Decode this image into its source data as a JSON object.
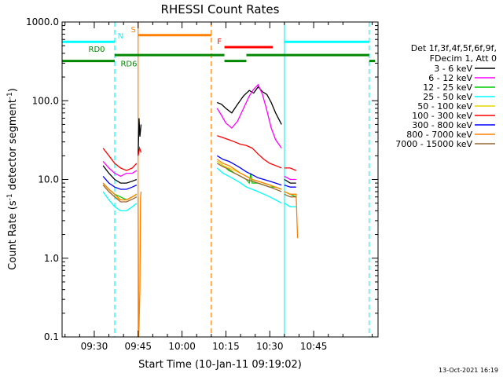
{
  "chart_data": {
    "type": "line",
    "title": "RHESSI Count Rates",
    "xlabel": "Start Time (10-Jan-11 09:19:02)",
    "ylabel_main": "Count Rate (s",
    "ylabel_sup1": "-1",
    "ylabel_mid": " detector segment",
    "ylabel_sup2": "-1",
    "ylabel_end": ")",
    "yscale": "log",
    "ylim": [
      0.1,
      1000
    ],
    "xlim_min": [
      19,
      127
    ],
    "yticks": [
      {
        "value": 1000,
        "label": "1000.0"
      },
      {
        "value": 100,
        "label": "100.0"
      },
      {
        "value": 10,
        "label": "10.0"
      },
      {
        "value": 1,
        "label": "1.0"
      },
      {
        "value": 0.1,
        "label": "0.1"
      }
    ],
    "xticks": [
      {
        "min": 30,
        "label": "09:30"
      },
      {
        "min": 45,
        "label": "09:45"
      },
      {
        "min": 60,
        "label": "10:00"
      },
      {
        "min": 75,
        "label": "10:15"
      },
      {
        "min": 90,
        "label": "10:30"
      },
      {
        "min": 105,
        "label": "10:45"
      }
    ],
    "legend": {
      "header1": "Det 1f,3f,4f,5f,6f,9f,",
      "header2": "FDecim 1, Att 0",
      "entries": [
        {
          "label": "3 - 6 keV",
          "color": "#000000"
        },
        {
          "label": "6 - 12 keV",
          "color": "#ff00ff"
        },
        {
          "label": "12 - 25 keV",
          "color": "#00cc00"
        },
        {
          "label": "25 - 50 keV",
          "color": "#00ffff"
        },
        {
          "label": "50 - 100 keV",
          "color": "#e6d600"
        },
        {
          "label": "100 - 300 keV",
          "color": "#ff0000"
        },
        {
          "label": "300 - 800 keV",
          "color": "#0000ff"
        },
        {
          "label": "800 - 7000 keV",
          "color": "#ff8000"
        },
        {
          "label": "7000 - 15000 keV",
          "color": "#996633"
        }
      ]
    },
    "flags": [
      {
        "label": "N",
        "color": "#00ffff",
        "value": 560,
        "segments": [
          [
            19,
            37
          ],
          [
            95,
            124
          ]
        ]
      },
      {
        "label": "S",
        "color": "#ff8000",
        "value": 680,
        "segments": [
          [
            45,
            70
          ]
        ]
      },
      {
        "label": "F",
        "color": "#ff0000",
        "value": 480,
        "segments": [
          [
            74.5,
            91
          ]
        ]
      },
      {
        "label": "RD0",
        "color": "#008800",
        "value": 380,
        "segments": [
          [
            37,
            74.5
          ],
          [
            82,
            124
          ]
        ]
      },
      {
        "label": "RD6",
        "color": "#008800",
        "value": 320,
        "segments": [
          [
            19,
            37
          ],
          [
            74.5,
            82
          ],
          [
            124,
            126
          ]
        ]
      }
    ],
    "vlines": [
      {
        "min": 37,
        "color": "#00ffff",
        "dash": true
      },
      {
        "min": 45,
        "color": "#ff8000",
        "dash": false
      },
      {
        "min": 70,
        "color": "#ff8000",
        "dash": true
      },
      {
        "min": 95,
        "color": "#00ffff",
        "dash": false
      },
      {
        "min": 124,
        "color": "#00ffff",
        "dash": true
      }
    ],
    "series": [
      {
        "name": "3 - 6 keV",
        "color": "#000000",
        "segments": [
          {
            "x": [
              33,
              35,
              37,
              39,
              41,
              43,
              44.5
            ],
            "y": [
              15,
              12,
              10,
              9,
              9,
              9.5,
              10
            ]
          },
          {
            "x": [
              45,
              45.3,
              45.6,
              46
            ],
            "y": [
              20,
              60,
              35,
              50
            ]
          },
          {
            "x": [
              72,
              73.5,
              75,
              77,
              79,
              81,
              83,
              84.5,
              86,
              87.5,
              89,
              90.5,
              92,
              94
            ],
            "y": [
              95,
              90,
              80,
              70,
              90,
              115,
              135,
              125,
              150,
              130,
              120,
              95,
              70,
              50
            ]
          },
          {
            "x": [
              95,
              97,
              99
            ],
            "y": [
              10,
              9,
              9
            ]
          }
        ]
      },
      {
        "name": "6 - 12 keV",
        "color": "#ff00ff",
        "segments": [
          {
            "x": [
              33,
              35,
              37,
              39,
              41,
              43,
              44.5
            ],
            "y": [
              17,
              14,
              12,
              11,
              12,
              12,
              13
            ]
          },
          {
            "x": [
              72,
              73.5,
              75,
              77,
              79,
              81,
              83,
              84.5,
              86,
              87.5,
              89,
              90.5,
              92,
              94
            ],
            "y": [
              80,
              65,
              52,
              45,
              55,
              80,
              115,
              140,
              160,
              120,
              75,
              45,
              32,
              25
            ]
          },
          {
            "x": [
              95,
              97,
              99
            ],
            "y": [
              11,
              10,
              10
            ]
          }
        ]
      },
      {
        "name": "12 - 25 keV",
        "color": "#00cc00",
        "segments": [
          {
            "x": [
              33,
              35,
              37,
              39,
              41,
              43,
              44.5
            ],
            "y": [
              9,
              7.5,
              6.5,
              6,
              5.5,
              6,
              6.5
            ]
          },
          {
            "x": [
              72,
              74,
              76,
              78,
              80,
              82,
              83,
              83.5,
              84,
              86,
              88,
              90,
              92,
              94
            ],
            "y": [
              17,
              15,
              13,
              12,
              11,
              10,
              9,
              12,
              9,
              9,
              8.5,
              8,
              8,
              7.5
            ]
          },
          {
            "x": [
              95,
              97,
              99
            ],
            "y": [
              7,
              6.5,
              6
            ]
          }
        ]
      },
      {
        "name": "25 - 50 keV",
        "color": "#00ffff",
        "segments": [
          {
            "x": [
              33,
              35,
              37,
              39,
              41,
              43,
              44.5
            ],
            "y": [
              7,
              5.5,
              4.5,
              4,
              4,
              4.5,
              5
            ]
          },
          {
            "x": [
              72,
              74,
              76,
              78,
              80,
              82,
              84,
              86,
              88,
              90,
              92,
              94
            ],
            "y": [
              14,
              12,
              11,
              10,
              9,
              8,
              7.5,
              7,
              6.5,
              6,
              5.5,
              5
            ]
          },
          {
            "x": [
              95,
              97,
              99
            ],
            "y": [
              5,
              4.5,
              4.5
            ]
          }
        ]
      },
      {
        "name": "50 - 100 keV",
        "color": "#e6d600",
        "segments": [
          {
            "x": [
              33,
              35,
              37,
              39,
              41,
              43,
              44.5
            ],
            "y": [
              8.5,
              7,
              6,
              5.5,
              5.5,
              6,
              6.5
            ]
          },
          {
            "x": [
              72,
              74,
              76,
              78,
              80,
              82,
              84,
              86,
              88,
              90,
              92,
              94
            ],
            "y": [
              17,
              15,
              14,
              13,
              12,
              11,
              10,
              9.5,
              9,
              8.5,
              8,
              7.5
            ]
          },
          {
            "x": [
              95,
              97,
              99
            ],
            "y": [
              7,
              6.5,
              6.5
            ]
          }
        ]
      },
      {
        "name": "100 - 300 keV",
        "color": "#ff0000",
        "segments": [
          {
            "x": [
              33,
              35,
              37,
              39,
              41,
              43,
              44.5
            ],
            "y": [
              25,
              20,
              16,
              14,
              13,
              14,
              16
            ]
          },
          {
            "x": [
              45,
              45.5,
              46
            ],
            "y": [
              20,
              25,
              22
            ]
          },
          {
            "x": [
              72,
              74,
              76,
              78,
              80,
              82,
              84,
              86,
              88,
              90,
              92,
              94
            ],
            "y": [
              36,
              34,
              32,
              30,
              28,
              27,
              25,
              21,
              18,
              16,
              15,
              14
            ]
          },
          {
            "x": [
              95,
              97,
              99
            ],
            "y": [
              14,
              14,
              13
            ]
          }
        ]
      },
      {
        "name": "300 - 800 keV",
        "color": "#0000ff",
        "segments": [
          {
            "x": [
              33,
              35,
              37,
              39,
              41,
              43,
              44.5
            ],
            "y": [
              11,
              9,
              8,
              7.5,
              7.5,
              8,
              8.5
            ]
          },
          {
            "x": [
              72,
              74,
              76,
              78,
              80,
              82,
              84,
              86,
              88,
              90,
              92,
              94
            ],
            "y": [
              20,
              18,
              17,
              15.5,
              14,
              12.5,
              11.5,
              10.5,
              10,
              9.5,
              9,
              8.5
            ]
          },
          {
            "x": [
              95,
              97,
              99
            ],
            "y": [
              8.5,
              8,
              8
            ]
          }
        ]
      },
      {
        "name": "800 - 7000 keV",
        "color": "#ff8000",
        "segments": [
          {
            "x": [
              33,
              35,
              37,
              39,
              41,
              43,
              44.5
            ],
            "y": [
              9,
              7.5,
              6.5,
              5.5,
              5.5,
              6,
              6.5
            ]
          },
          {
            "x": [
              45,
              45.2,
              45.4,
              45.6,
              45.8,
              46
            ],
            "y": [
              6,
              0.1,
              0.2,
              0.4,
              6,
              7
            ]
          },
          {
            "x": [
              72,
              74,
              76,
              78,
              80,
              82,
              84,
              86,
              88,
              90,
              92,
              94
            ],
            "y": [
              18,
              16,
              15,
              13.5,
              12,
              11,
              10,
              9.5,
              9,
              8.5,
              8,
              7.5
            ]
          },
          {
            "x": [
              95,
              97,
              99,
              99.5
            ],
            "y": [
              7,
              6.5,
              6.5,
              1.8
            ]
          }
        ]
      },
      {
        "name": "7000 - 15000 keV",
        "color": "#996633",
        "segments": [
          {
            "x": [
              33,
              35,
              37,
              39,
              41,
              43,
              44.5
            ],
            "y": [
              8.5,
              7,
              6,
              5.2,
              5.2,
              5.6,
              6
            ]
          },
          {
            "x": [
              72,
              74,
              76,
              78,
              80,
              82,
              84,
              86,
              88,
              90,
              92,
              94
            ],
            "y": [
              16,
              14.5,
              13.5,
              12,
              11,
              10,
              9.5,
              9,
              8.5,
              8,
              7.5,
              7
            ]
          },
          {
            "x": [
              95,
              97,
              99
            ],
            "y": [
              6.5,
              6,
              6
            ]
          }
        ]
      }
    ]
  },
  "footer_date": "13-Oct-2021 16:19"
}
